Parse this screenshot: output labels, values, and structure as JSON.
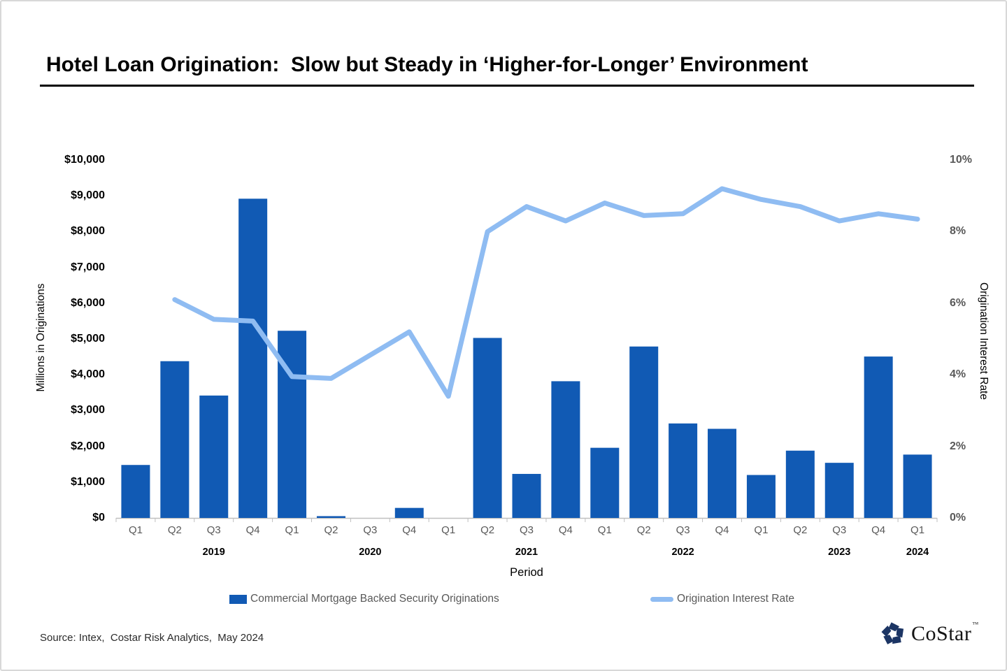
{
  "slide": {
    "title": "Hotel Loan Origination:  Slow but Steady in ‘Higher-for-Longer’ Environment",
    "source_note": "Source: Intex,  Costar Risk Analytics,  May 2024",
    "logo_text": "CoStar",
    "logo_tm": "™"
  },
  "colors": {
    "bar": "#115AB4",
    "line": "#8FBCF2",
    "axis": "#BFBFBF",
    "tick_gray": "#595959",
    "logo_navy": "#1C3564"
  },
  "chart_data": {
    "type": "bar",
    "subtype": "combo-bar-line-dual-axis",
    "title": "Hotel Loan Origination:  Slow but Steady in ‘Higher-for-Longer’ Environment",
    "xlabel": "Period",
    "grid": false,
    "legend_position": "bottom",
    "categories": [
      "Q1",
      "Q2",
      "Q3",
      "Q4",
      "Q1",
      "Q2",
      "Q3",
      "Q4",
      "Q1",
      "Q2",
      "Q3",
      "Q4",
      "Q1",
      "Q2",
      "Q3",
      "Q4",
      "Q1",
      "Q2",
      "Q3",
      "Q4",
      "Q1"
    ],
    "year_labels": [
      {
        "label": "2019",
        "quarter_index": 2
      },
      {
        "label": "2020",
        "quarter_index": 6
      },
      {
        "label": "2021",
        "quarter_index": 10
      },
      {
        "label": "2022",
        "quarter_index": 14
      },
      {
        "label": "2023",
        "quarter_index": 18
      },
      {
        "label": "2024",
        "quarter_index": 20
      }
    ],
    "series": [
      {
        "name": "Commercial Mortgage Backed Security Originations",
        "type": "bar",
        "axis": "left",
        "values": [
          1480,
          4380,
          3420,
          8920,
          5230,
          50,
          0,
          280,
          0,
          5030,
          1230,
          3820,
          1960,
          4790,
          2640,
          2490,
          1200,
          1880,
          1540,
          4510,
          1770
        ]
      },
      {
        "name": "Origination Interest Rate",
        "type": "line",
        "axis": "right",
        "values": [
          null,
          6.1,
          5.55,
          5.5,
          3.95,
          3.9,
          4.55,
          5.2,
          3.4,
          8.0,
          8.7,
          8.3,
          8.8,
          8.45,
          8.5,
          9.2,
          8.9,
          8.7,
          8.3,
          8.5,
          8.35
        ]
      }
    ],
    "left_axis": {
      "title": "Millions in Originations",
      "min": 0,
      "max": 10000,
      "tick_values": [
        0,
        1000,
        2000,
        3000,
        4000,
        5000,
        6000,
        7000,
        8000,
        9000,
        10000
      ],
      "tick_labels": [
        "$0",
        "$1,000",
        "$2,000",
        "$3,000",
        "$4,000",
        "$5,000",
        "$6,000",
        "$7,000",
        "$8,000",
        "$9,000",
        "$10,000"
      ]
    },
    "right_axis": {
      "title": "Origination Interest Rate",
      "min": 0,
      "max": 10,
      "tick_values": [
        0,
        2,
        4,
        6,
        8,
        10
      ],
      "tick_labels": [
        "0%",
        "2%",
        "4%",
        "6%",
        "8%",
        "10%"
      ]
    },
    "legend": [
      {
        "label": "Commercial Mortgage Backed Security Originations",
        "swatch": "bar"
      },
      {
        "label": "Origination Interest Rate",
        "swatch": "line"
      }
    ]
  }
}
